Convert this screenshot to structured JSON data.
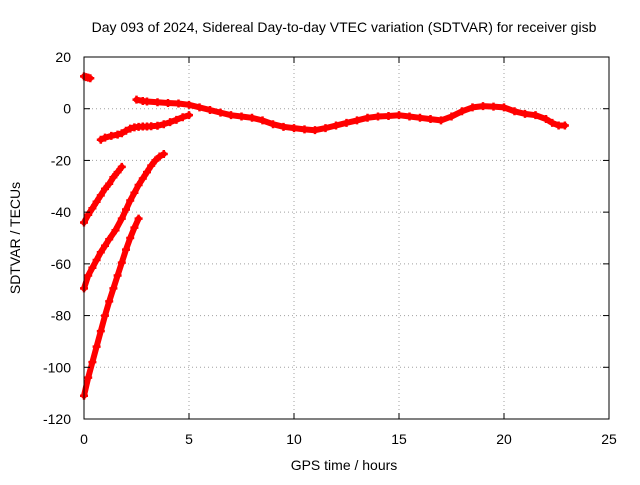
{
  "chart_data": {
    "type": "scatter",
    "title": "Day 093 of 2024, Sidereal Day-to-day VTEC variation (SDTVAR) for receiver gisb",
    "xlabel": "GPS time / hours",
    "ylabel": "SDTVAR / TECUs",
    "xlim": [
      0,
      25
    ],
    "ylim": [
      -120,
      20
    ],
    "xticks": [
      0,
      5,
      10,
      15,
      20,
      25
    ],
    "yticks": [
      -120,
      -100,
      -80,
      -60,
      -40,
      -20,
      0,
      20
    ],
    "grid": true,
    "marker_color": "#ff0000",
    "series": [
      {
        "x": [
          0.0,
          0.1,
          0.2,
          0.3
        ],
        "y": [
          12.5,
          12.2,
          12.0,
          11.8
        ]
      },
      {
        "x": [
          0.8,
          1.0,
          1.3,
          1.6,
          1.8,
          2.0,
          2.2,
          2.4,
          2.6,
          2.8,
          3.0,
          3.2,
          3.5,
          3.8,
          4.1,
          4.4,
          4.7,
          5.0
        ],
        "y": [
          -12.0,
          -11.2,
          -10.5,
          -10.0,
          -9.5,
          -8.5,
          -7.7,
          -7.2,
          -7.0,
          -6.9,
          -6.9,
          -6.8,
          -6.6,
          -6.0,
          -5.2,
          -4.3,
          -3.3,
          -2.5
        ]
      },
      {
        "x": [
          0.0,
          0.2,
          0.4,
          0.6,
          0.8,
          1.0,
          1.2,
          1.4,
          1.6,
          1.8
        ],
        "y": [
          -44.0,
          -41.0,
          -38.5,
          -36.0,
          -33.5,
          -31.0,
          -29.0,
          -26.5,
          -24.5,
          -22.5
        ]
      },
      {
        "x": [
          0.0,
          0.2,
          0.4,
          0.6,
          0.8,
          1.0,
          1.2,
          1.5,
          1.8,
          2.0,
          2.2,
          2.4,
          2.6,
          2.8,
          3.0,
          3.2,
          3.4,
          3.6,
          3.8
        ],
        "y": [
          -69.5,
          -64.5,
          -61.5,
          -58.5,
          -55.5,
          -53.0,
          -50.5,
          -47.0,
          -42.5,
          -39.0,
          -35.5,
          -32.5,
          -29.5,
          -27.0,
          -24.5,
          -22.0,
          -20.0,
          -18.5,
          -17.5
        ]
      },
      {
        "x": [
          0.0,
          0.2,
          0.4,
          0.6,
          0.8,
          1.0,
          1.2,
          1.4,
          1.6,
          1.8,
          2.0,
          2.2,
          2.4,
          2.6
        ],
        "y": [
          -111.0,
          -104.0,
          -98.0,
          -92.0,
          -86.0,
          -80.0,
          -74.5,
          -69.5,
          -64.5,
          -59.5,
          -54.5,
          -50.0,
          -46.0,
          -42.5
        ]
      },
      {
        "x": [
          2.5,
          2.8,
          3.0,
          3.5,
          4.0,
          4.5,
          5.0,
          5.5,
          6.0,
          6.5,
          7.0,
          7.5,
          8.0,
          8.5,
          9.0,
          9.5,
          10.0,
          10.5,
          11.0,
          11.5,
          12.0,
          12.5,
          13.0,
          13.5,
          14.0,
          14.5,
          15.0,
          15.5,
          16.0,
          16.5,
          17.0,
          17.5,
          18.0,
          18.5,
          19.0,
          19.5,
          20.0,
          20.5,
          21.0,
          21.5,
          22.0,
          22.3,
          22.6,
          22.9
        ],
        "y": [
          3.5,
          3.0,
          2.8,
          2.5,
          2.2,
          2.0,
          1.5,
          0.5,
          -0.5,
          -1.5,
          -2.5,
          -3.0,
          -3.5,
          -4.5,
          -6.0,
          -7.0,
          -7.5,
          -8.0,
          -8.3,
          -7.5,
          -6.5,
          -5.5,
          -4.5,
          -3.5,
          -3.0,
          -2.8,
          -2.5,
          -3.0,
          -3.5,
          -4.0,
          -4.5,
          -3.0,
          -1.0,
          0.5,
          1.0,
          0.8,
          0.5,
          -1.0,
          -2.0,
          -2.5,
          -4.0,
          -5.5,
          -6.5,
          -6.5
        ]
      }
    ]
  }
}
